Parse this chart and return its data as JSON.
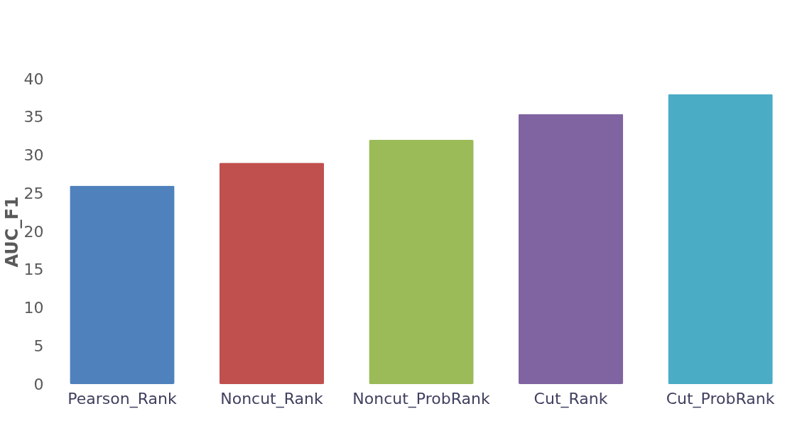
{
  "chart_data": {
    "type": "bar",
    "ylabel": "AUC_F1",
    "categories": [
      "Pearson_Rank",
      "Noncut_Rank",
      "Noncut_ProbRank",
      "Cut_Rank",
      "Cut_ProbRank"
    ],
    "values": [
      26,
      29,
      32,
      35.4,
      38
    ],
    "colors": [
      "#4f81bd",
      "#c0504d",
      "#9bbb59",
      "#8064a2",
      "#4bacc6"
    ],
    "ylim": [
      0,
      40
    ],
    "yticks": [
      0,
      5,
      10,
      15,
      20,
      25,
      30,
      35,
      40
    ],
    "grid": false,
    "legend": false
  }
}
